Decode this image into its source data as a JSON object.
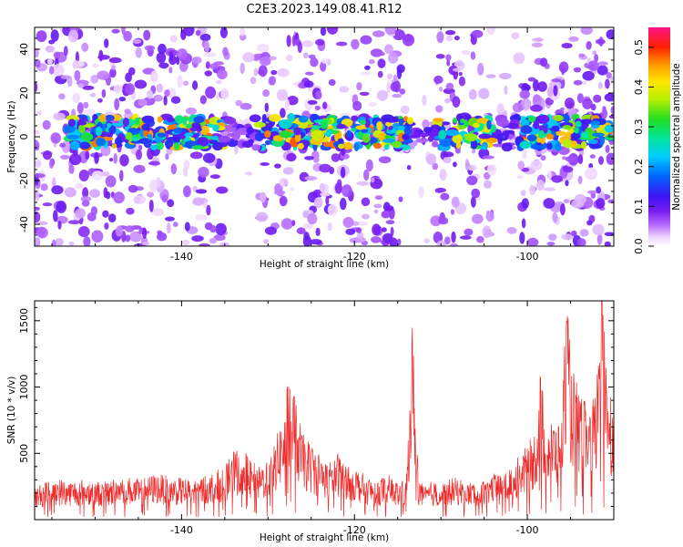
{
  "figure": {
    "title": "C2E3.2023.149.08.41.R12"
  },
  "chart_data": [
    {
      "type": "heatmap",
      "title": "C2E3.2023.149.08.41.R12",
      "xlabel": "Height of straight line (km)",
      "ylabel": "Frequency (Hz)",
      "xlim": [
        -157,
        -90
      ],
      "ylim": [
        -50,
        50
      ],
      "x_ticks": [
        -140,
        -120,
        -100
      ],
      "y_ticks": [
        -40,
        -20,
        0,
        20,
        40
      ],
      "colorbar": {
        "label": "Normalized spectral amplitude",
        "range": [
          0.0,
          0.55
        ],
        "ticks": [
          0.0,
          0.1,
          0.2,
          0.3,
          0.4,
          0.5
        ],
        "colormap": "rainbow"
      },
      "grid": false,
      "description_band_center_hz": 2,
      "band_strong_segments_km": [
        [
          -152,
          -135
        ],
        [
          -133,
          -114
        ],
        [
          -112,
          -107
        ],
        [
          -106,
          -90
        ]
      ],
      "low_activity_gaps_km": [
        [
          -135,
          -131
        ],
        [
          -113.5,
          -110.5
        ],
        [
          -104,
          -101
        ]
      ]
    },
    {
      "type": "line",
      "xlabel": "Height of straight line (km)",
      "ylabel": "SNR (10 * v/v)",
      "xlim": [
        -157,
        -90
      ],
      "ylim": [
        0,
        1650
      ],
      "x_ticks": [
        -140,
        -120,
        -100
      ],
      "y_ticks": [
        500,
        1000,
        1500
      ],
      "grid": false,
      "line_color": "#ee2b2b",
      "x": [
        -157,
        -155,
        -153,
        -151,
        -149,
        -147,
        -145,
        -143,
        -141,
        -139,
        -137,
        -135,
        -134,
        -133,
        -132,
        -131,
        -130,
        -129,
        -128,
        -127.5,
        -127,
        -126,
        -125,
        -124,
        -123,
        -122,
        -121,
        -120,
        -119,
        -118,
        -117,
        -116,
        -115,
        -114,
        -113.3,
        -113,
        -112.6,
        -112,
        -111,
        -110,
        -109,
        -108,
        -107,
        -106,
        -105,
        -104,
        -103,
        -102,
        -101,
        -100,
        -99,
        -98.5,
        -98,
        -97,
        -96,
        -95.5,
        -95,
        -94,
        -93,
        -92,
        -91.5,
        -91,
        -90.5,
        -90
      ],
      "values": [
        180,
        240,
        220,
        230,
        210,
        250,
        230,
        260,
        240,
        230,
        250,
        300,
        380,
        420,
        330,
        300,
        360,
        470,
        640,
        900,
        720,
        480,
        430,
        380,
        320,
        380,
        330,
        300,
        260,
        230,
        240,
        250,
        210,
        230,
        1120,
        780,
        250,
        180,
        220,
        200,
        230,
        240,
        210,
        220,
        240,
        260,
        250,
        300,
        360,
        420,
        520,
        880,
        620,
        560,
        580,
        1360,
        900,
        720,
        640,
        720,
        1640,
        1060,
        820,
        600
      ]
    }
  ]
}
